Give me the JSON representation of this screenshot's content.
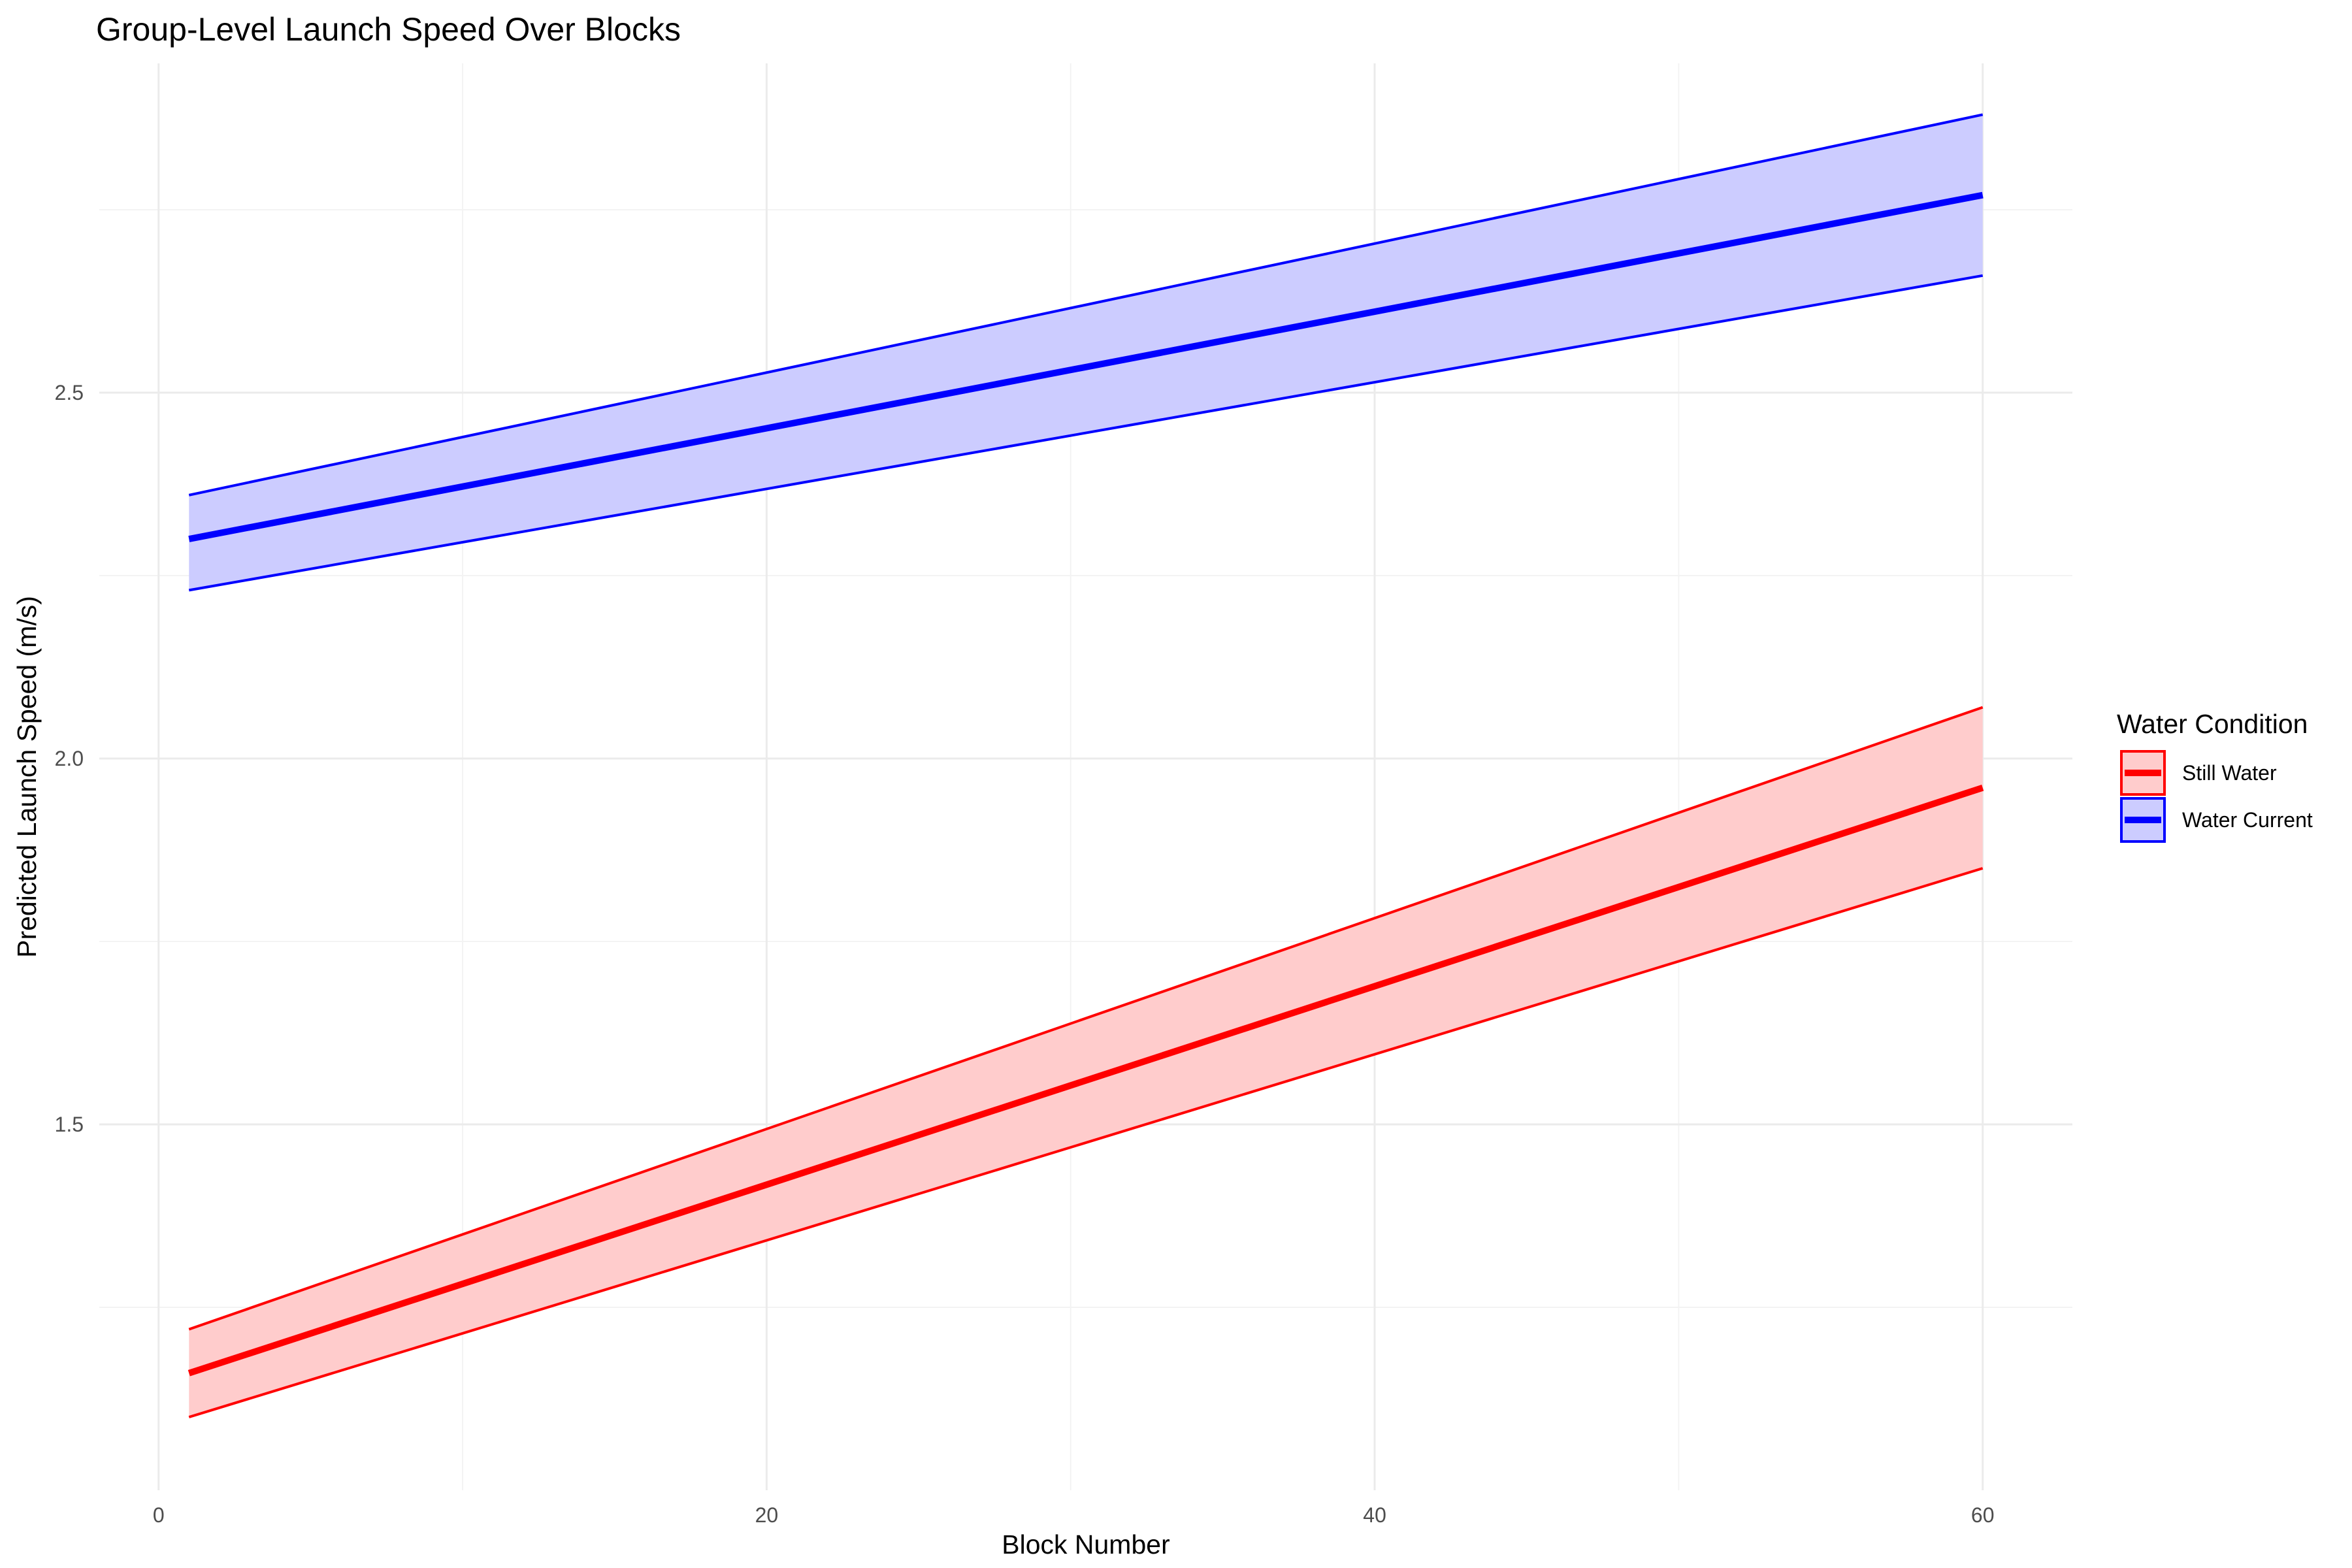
{
  "chart_data": {
    "type": "line",
    "title": "Group-Level Launch Speed Over Blocks",
    "xlabel": "Block Number",
    "ylabel": "Predicted Launch Speed (m/s)",
    "xlim": [
      -1.95,
      62.95
    ],
    "ylim": [
      1.0,
      2.95
    ],
    "x_ticks": [
      0,
      20,
      40,
      60
    ],
    "x_tick_labels": [
      "0",
      "20",
      "40",
      "60"
    ],
    "x_minor_ticks": [
      10,
      30,
      50
    ],
    "y_ticks": [
      1.5,
      2.0,
      2.5
    ],
    "y_tick_labels": [
      "1.5",
      "2.0",
      "2.5"
    ],
    "y_minor_ticks": [
      1.25,
      1.75,
      2.25,
      2.75
    ],
    "grid": true,
    "legend": {
      "title": "Water Condition",
      "position": "right"
    },
    "series": [
      {
        "name": "Still Water",
        "color": "#ff0000",
        "fill": "#ffcccc",
        "x": [
          1,
          60
        ],
        "y": [
          1.16,
          1.96
        ],
        "lower": [
          1.1,
          1.85
        ],
        "upper": [
          1.22,
          2.07
        ]
      },
      {
        "name": "Water Current",
        "color": "#0000ff",
        "fill": "#ccccff",
        "x": [
          1,
          60
        ],
        "y": [
          2.3,
          2.77
        ],
        "lower": [
          2.23,
          2.66
        ],
        "upper": [
          2.36,
          2.88
        ]
      }
    ]
  }
}
